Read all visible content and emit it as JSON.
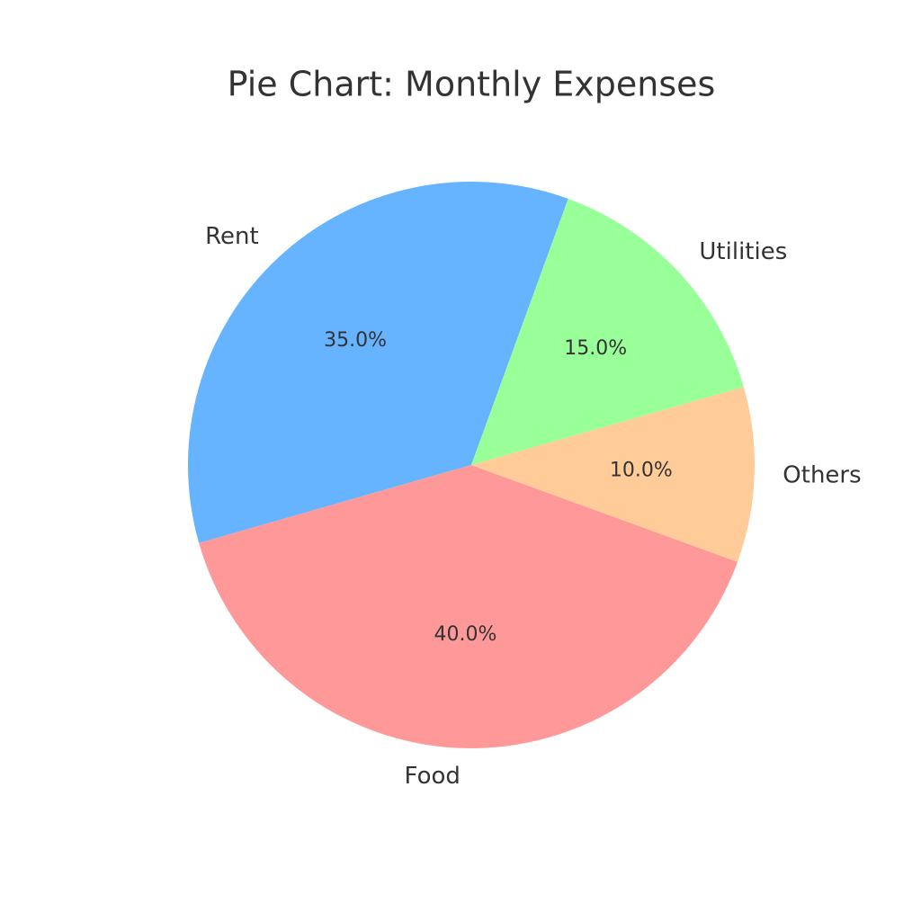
{
  "chart_data": {
    "type": "pie",
    "title": "Pie Chart: Monthly Expenses",
    "start_angle_deg": 70,
    "direction": "counterclockwise",
    "slices": [
      {
        "label": "Rent",
        "value": 35,
        "pct_label": "35.0%",
        "color": "#66b3ff"
      },
      {
        "label": "Food",
        "value": 40,
        "pct_label": "40.0%",
        "color": "#ff9999"
      },
      {
        "label": "Others",
        "value": 10,
        "pct_label": "10.0%",
        "color": "#ffcc99"
      },
      {
        "label": "Utilities",
        "value": 15,
        "pct_label": "15.0%",
        "color": "#99ff99"
      }
    ]
  }
}
